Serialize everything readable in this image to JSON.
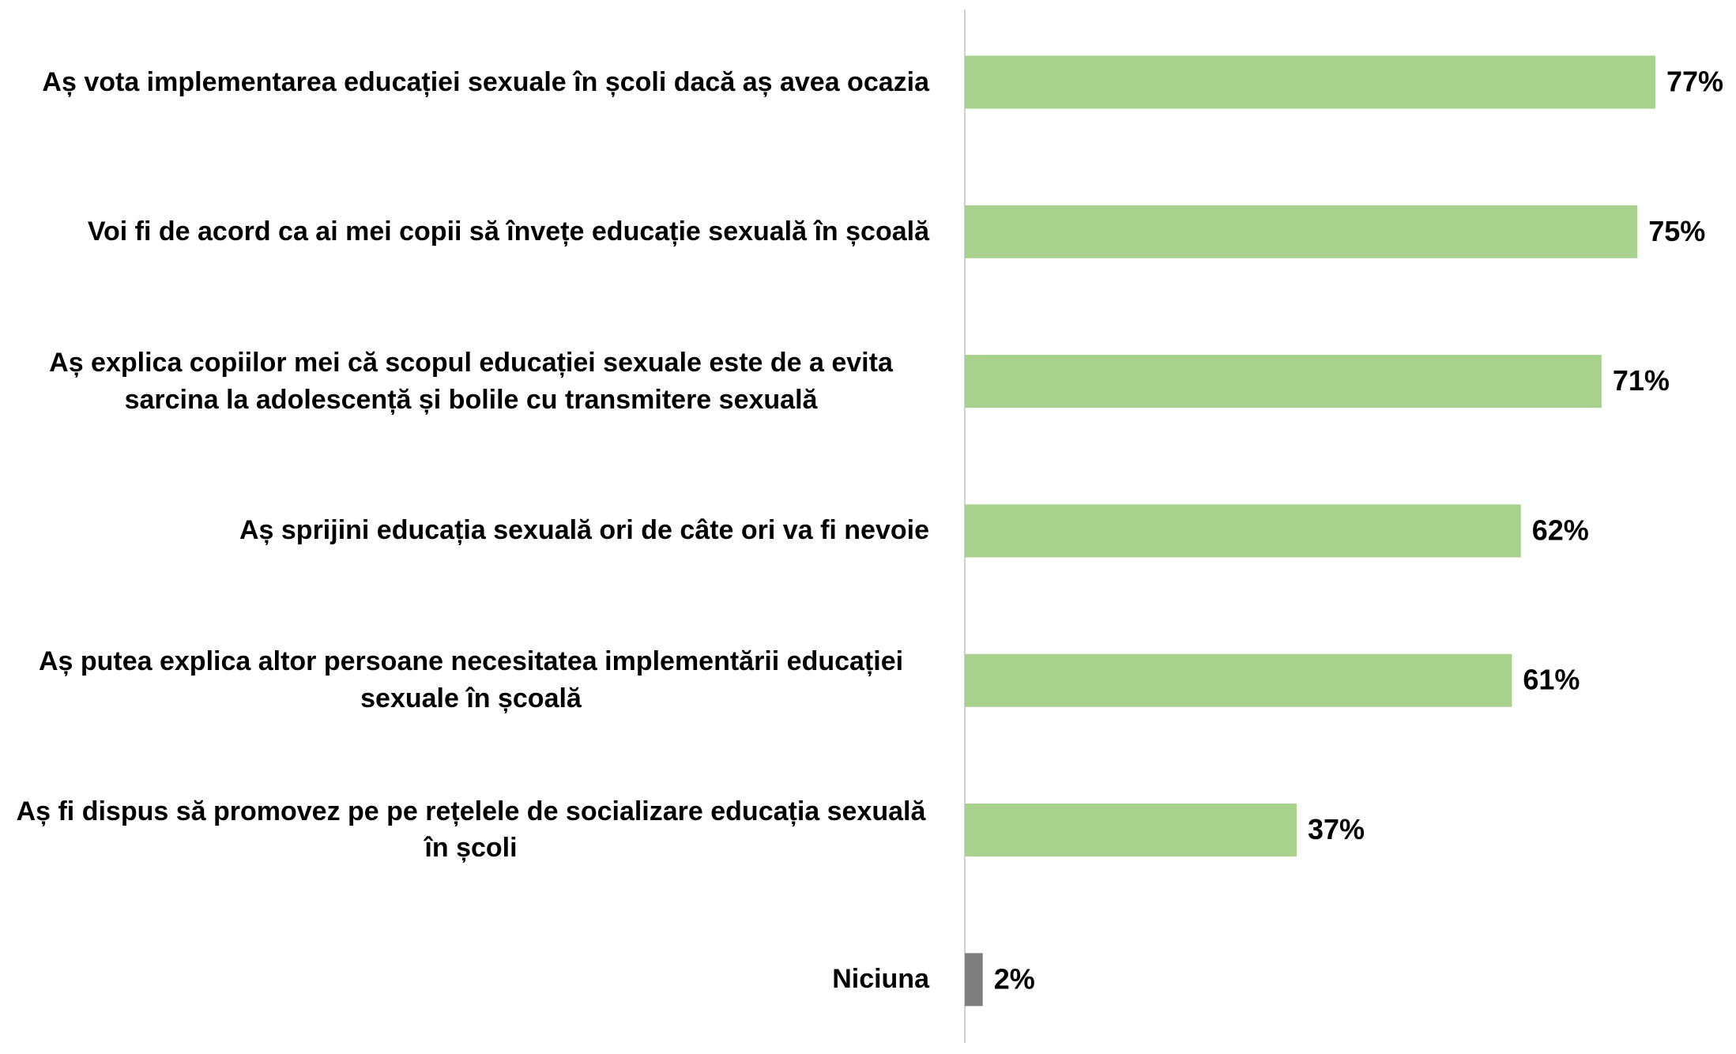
{
  "chart_data": {
    "type": "bar",
    "orientation": "horizontal",
    "categories": [
      "Aș vota implementarea educației sexuale în școli dacă aș avea ocazia",
      "Voi fi de acord ca ai mei copii să învețe educație sexuală în școală",
      "Aș explica copiilor mei că scopul educației sexuale este de a evita sarcina la adolescență și bolile cu transmitere sexuală",
      "Aș sprijini educația sexuală ori de câte ori va fi nevoie",
      "Aș putea explica altor persoane necesitatea implementării educației sexuale în școală",
      "Aș fi dispus să promovez pe pe rețelele de socializare educația sexuală în școli",
      "Niciuna"
    ],
    "values": [
      77,
      75,
      71,
      62,
      61,
      37,
      2
    ],
    "value_labels": [
      "77%",
      "75%",
      "71%",
      "62%",
      "61%",
      "37%",
      "2%"
    ],
    "colors": [
      "#a9d18e",
      "#a9d18e",
      "#a9d18e",
      "#a9d18e",
      "#a9d18e",
      "#a9d18e",
      "#7f7f7f"
    ]
  }
}
